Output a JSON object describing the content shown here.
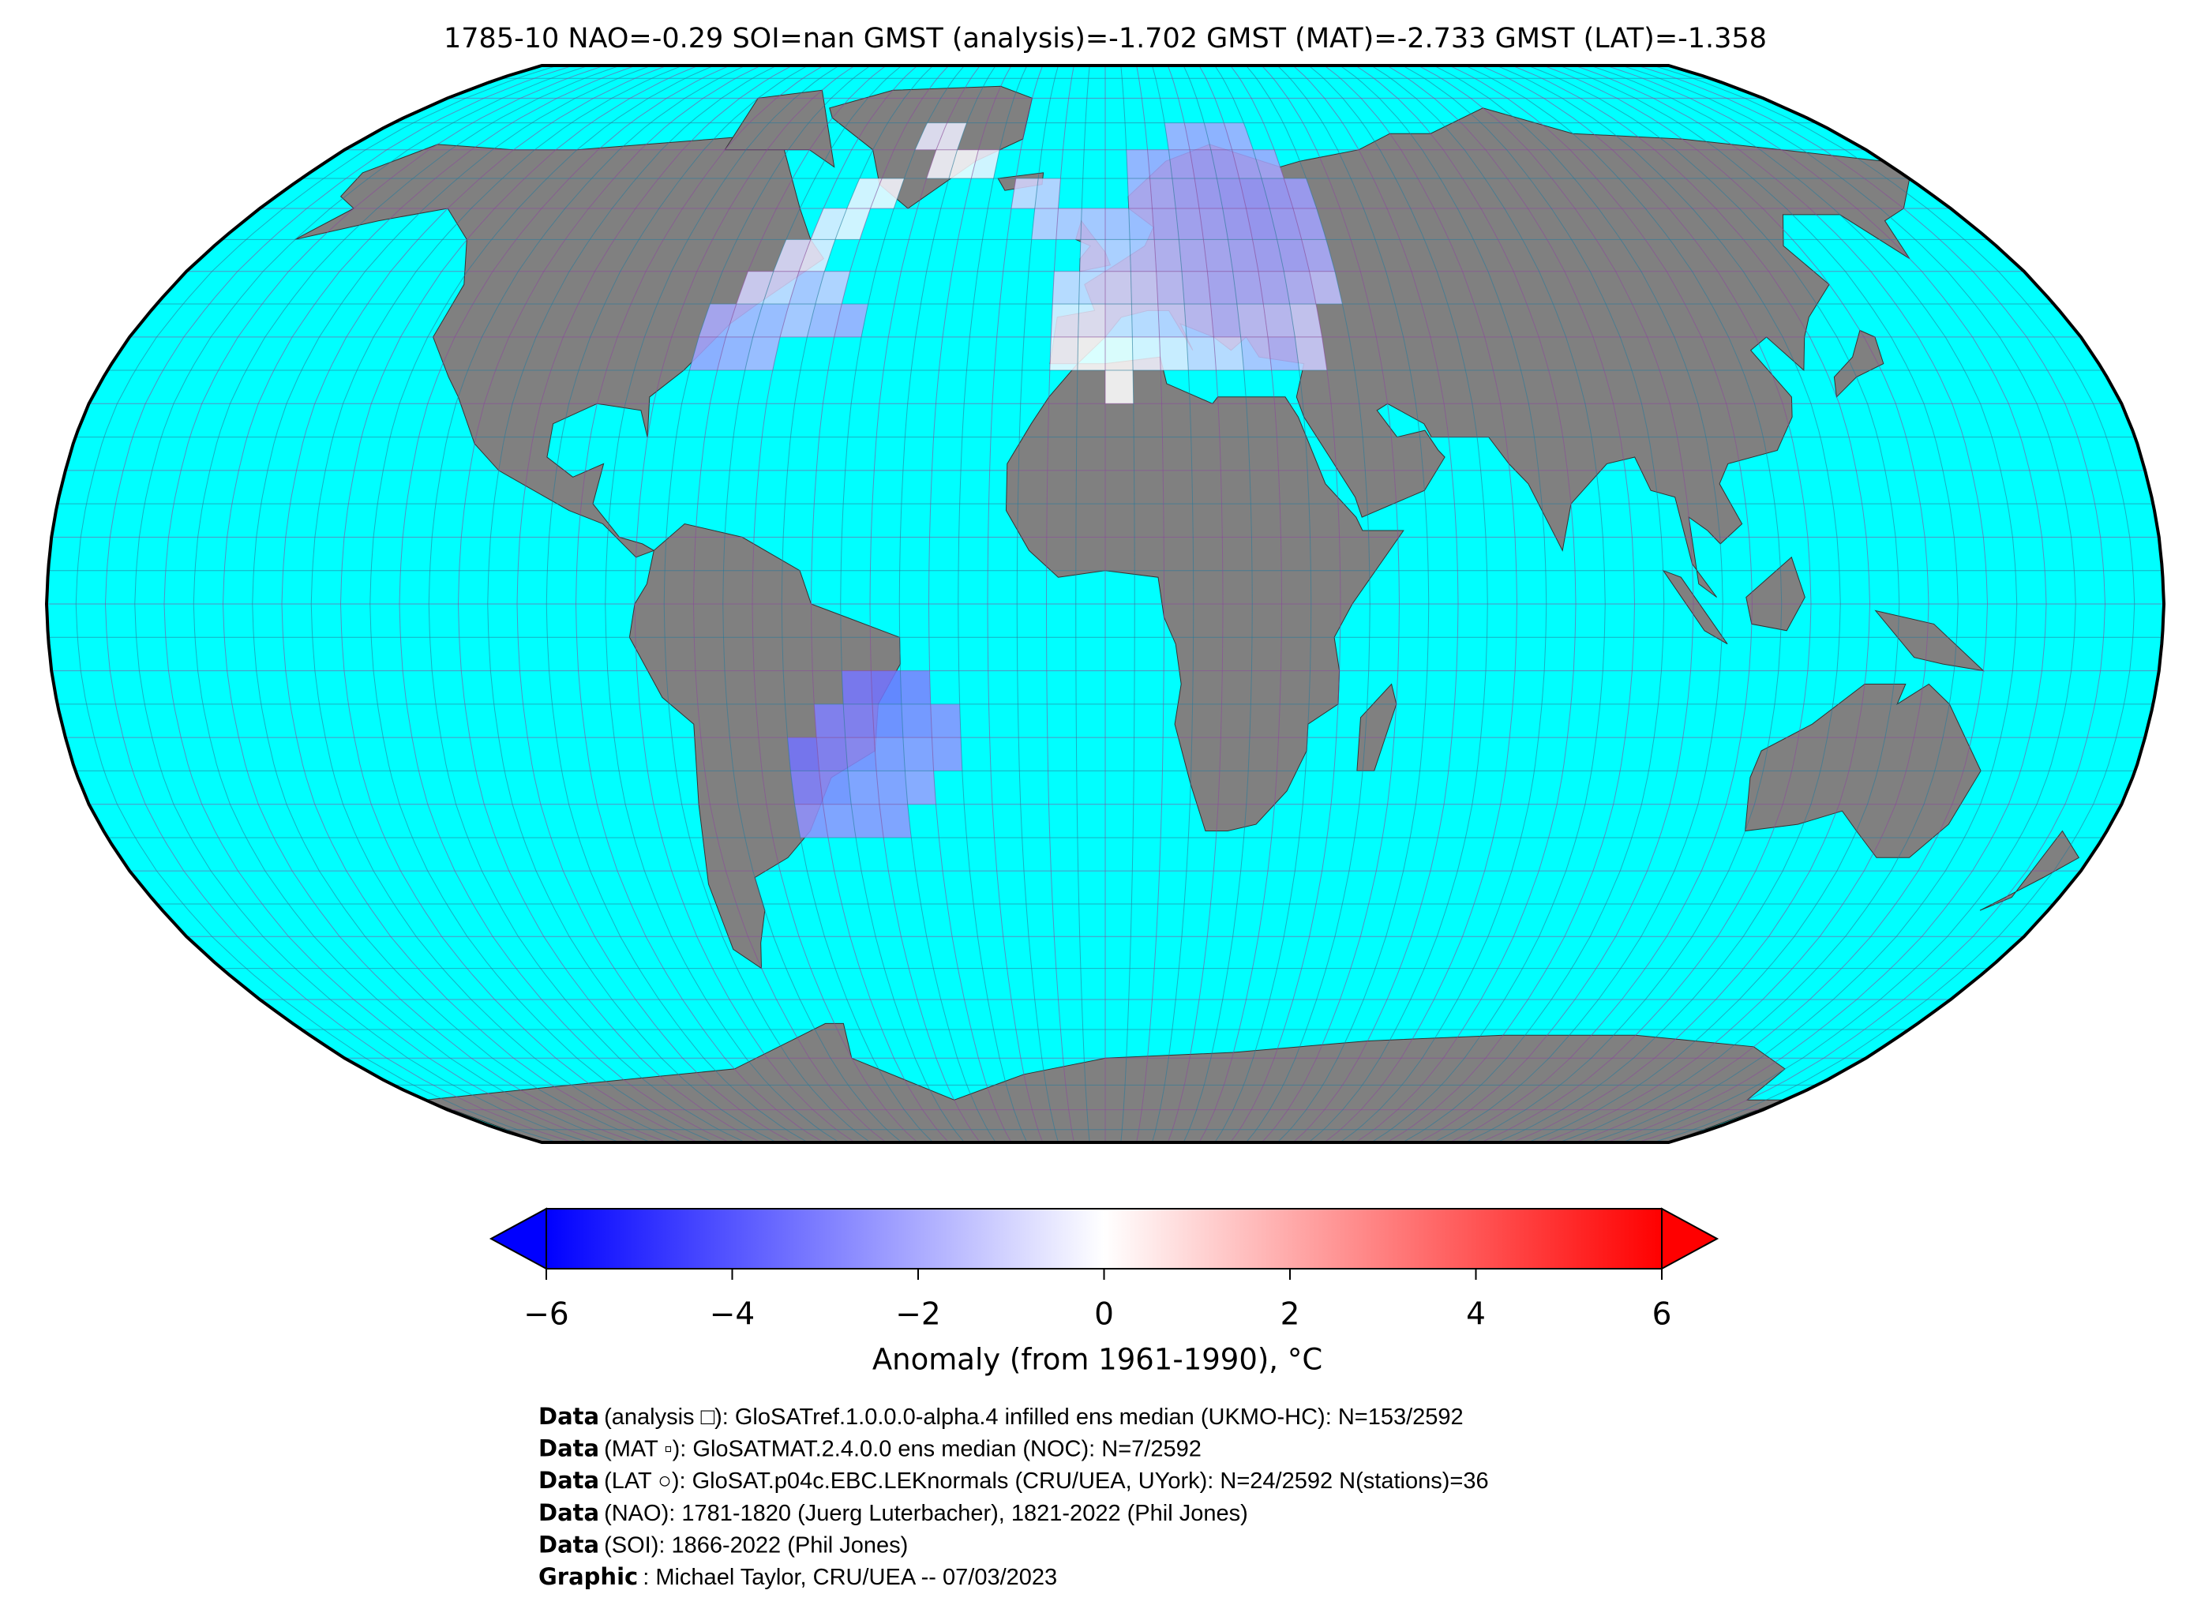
{
  "chart_data": {
    "type": "map",
    "title": "1785-10 NAO=-0.29 SOI=nan GMST (analysis)=-1.702 GMST (MAT)=-2.733 GMST (LAT)=-1.358",
    "colorbar": {
      "label": "Anomaly (from 1961-1990), °C",
      "lim": [
        -6,
        6
      ],
      "ticks": [
        {
          "value": -6,
          "label": "−6"
        },
        {
          "value": -4,
          "label": "−4"
        },
        {
          "value": -2,
          "label": "−2"
        },
        0,
        2,
        4,
        6
      ],
      "colors": [
        "#0000ff",
        "#ffffff",
        "#ff0000"
      ]
    },
    "grid_cells": {
      "lon": [
        -75,
        -70,
        -65,
        -75,
        -70,
        -65,
        -60,
        -55,
        -50,
        -70,
        -65,
        -60,
        -55,
        -65,
        -60,
        -60,
        -55,
        -55,
        -50,
        -40,
        -35,
        -30,
        -45,
        -40,
        -10,
        -5,
        0,
        5,
        10,
        15,
        20,
        25,
        30,
        35,
        0,
        -10,
        -5,
        0,
        5,
        10,
        15,
        20,
        25,
        30,
        35,
        -10,
        -5,
        0,
        5,
        10,
        15,
        20,
        25,
        30,
        35,
        40,
        -5,
        0,
        5,
        10,
        15,
        20,
        25,
        30,
        35,
        40,
        -15,
        -10,
        -5,
        0,
        5,
        10,
        15,
        20,
        25,
        30,
        35,
        40,
        -20,
        -15,
        5,
        10,
        15,
        20,
        25,
        30,
        35,
        40,
        5,
        10,
        15,
        20,
        25,
        30,
        35,
        15,
        20,
        25,
        30,
        -45,
        -40,
        -35,
        -50,
        -45,
        -40,
        -35,
        -30,
        -55,
        -50,
        -45,
        -40,
        -35,
        -30,
        -55,
        -50,
        -45,
        -40,
        -35,
        -55,
        -50,
        -45,
        -40
      ],
      "lat": [
        35,
        35,
        35,
        40,
        40,
        40,
        40,
        40,
        40,
        45,
        45,
        45,
        45,
        50,
        50,
        55,
        55,
        60,
        60,
        65,
        65,
        65,
        70,
        70,
        35,
        35,
        35,
        35,
        35,
        35,
        35,
        35,
        35,
        35,
        30,
        40,
        40,
        40,
        40,
        40,
        40,
        40,
        40,
        40,
        40,
        45,
        45,
        45,
        45,
        45,
        45,
        45,
        45,
        45,
        45,
        45,
        50,
        50,
        50,
        50,
        50,
        50,
        50,
        50,
        50,
        50,
        55,
        55,
        55,
        55,
        55,
        55,
        55,
        55,
        55,
        55,
        55,
        55,
        60,
        60,
        60,
        60,
        60,
        60,
        60,
        60,
        60,
        60,
        65,
        65,
        65,
        65,
        65,
        65,
        65,
        70,
        70,
        70,
        70,
        -15,
        -15,
        -15,
        -20,
        -20,
        -20,
        -20,
        -20,
        -25,
        -25,
        -25,
        -25,
        -25,
        -25,
        -30,
        -30,
        -30,
        -30,
        -30,
        -35,
        -35,
        -35,
        -35
      ],
      "values": [
        -2.2,
        -2,
        -1.8,
        -2,
        -1.8,
        -1.8,
        -1.5,
        -1.8,
        -2,
        -1,
        -1,
        -1.5,
        -1.2,
        -0.8,
        -0.5,
        -0.5,
        -0.3,
        -0.3,
        -0.2,
        -0.2,
        -0.1,
        -0.3,
        -0.5,
        -0.4,
        -0.2,
        0,
        0.1,
        -0.3,
        -0.5,
        -1,
        -1,
        -1.5,
        -1.8,
        -1.2,
        0,
        -0.5,
        -0.5,
        -0.8,
        -1,
        -1.2,
        -1.5,
        -1.8,
        -1.5,
        -1.5,
        -1.2,
        -1,
        -1,
        -1,
        -1.2,
        -1.5,
        -1.8,
        -2,
        -2,
        -2,
        -1.8,
        -1.5,
        -1.2,
        -1.3,
        -1.5,
        -1.7,
        -1.9,
        -2,
        -2.1,
        -2.2,
        -2.2,
        -2,
        -1.3,
        -1.4,
        -1.5,
        -1.6,
        -1.8,
        -2,
        -2.1,
        -2.2,
        -2.3,
        -2.4,
        -2.3,
        -2.2,
        -1,
        -1.2,
        -1.9,
        -2,
        -2.2,
        -2.3,
        -2.4,
        -2.5,
        -2.4,
        -2.3,
        -2,
        -2.1,
        -2.2,
        -2.3,
        -2.3,
        -2.2,
        -2.1,
        -2,
        -2.1,
        -2.1,
        -2,
        -3.2,
        -3.3,
        -3,
        -3,
        -3,
        -3,
        -2.8,
        -2.6,
        -3.3,
        -3,
        -2.8,
        -2.6,
        -2.5,
        -2.5,
        -3,
        -2.8,
        -2.5,
        -2.5,
        -2.3,
        -2.6,
        -2.5,
        -2.5,
        -2.5
      ]
    },
    "credits": [
      {
        "label": "Data",
        "text": "(analysis □): GloSATref.1.0.0.0-alpha.4 infilled ens median (UKMO-HC): N=153/2592"
      },
      {
        "label": "Data",
        "text": "(MAT ▫): GloSATMAT.2.4.0.0 ens median (NOC): N=7/2592"
      },
      {
        "label": "Data",
        "text": "(LAT ○): GloSAT.p04c.EBC.LEKnormals (CRU/UEA, UYork): N=24/2592 N(stations)=36"
      },
      {
        "label": "Data",
        "text": "(NAO): 1781-1820 (Juerg Luterbacher), 1821-2022 (Phil Jones)"
      },
      {
        "label": "Data",
        "text": "(SOI): 1866-2022 (Phil Jones)"
      },
      {
        "label": "Graphic",
        "text": ": Michael Taylor, CRU/UEA -- 07/03/2023"
      }
    ]
  }
}
